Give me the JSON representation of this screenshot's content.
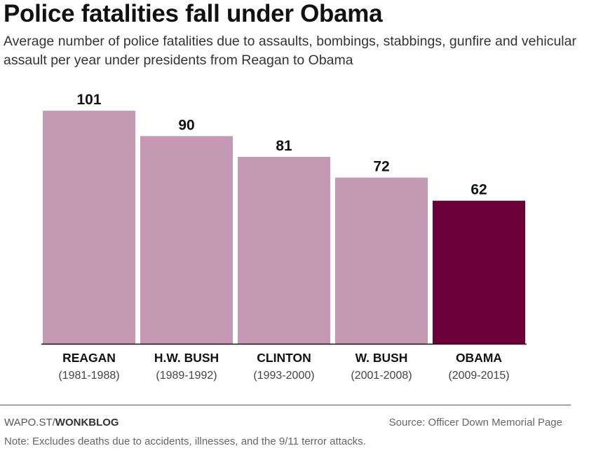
{
  "chart_data": {
    "type": "bar",
    "title": "Police fatalities fall under Obama",
    "subtitle": "Average number of police fatalities due to assaults, bombings, stabbings, gunfire and vehicular assault per year under presidents from Reagan to Obama",
    "categories": [
      "REAGAN",
      "H.W. BUSH",
      "CLINTON",
      "W. BUSH",
      "OBAMA"
    ],
    "periods": [
      "(1981-1988)",
      "(1989-1992)",
      "(1993-2000)",
      "(2001-2008)",
      "(2009-2015)"
    ],
    "values": [
      101,
      90,
      81,
      72,
      62
    ],
    "highlight_index": 4,
    "ylim": [
      0,
      110
    ],
    "xlabel": "",
    "ylabel": "",
    "colors": {
      "default": "#c598b3",
      "highlight": "#6c0039"
    }
  },
  "footer": {
    "credit_prefix": "WAPO.ST/",
    "credit_brand": "WONKBLOG",
    "source": "Source: Officer Down Memorial Page",
    "note": "Note: Excludes deaths due to accidents, illnesses, and the 9/11 terror attacks."
  }
}
